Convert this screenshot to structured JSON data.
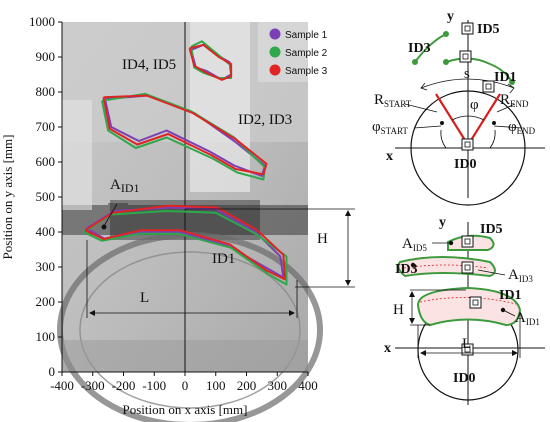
{
  "chart_data": [
    {
      "type": "line",
      "xlabel": "Position on x axis [mm]",
      "ylabel": "Position on y axis [mm]",
      "xlim": [
        -400,
        400
      ],
      "ylim": [
        0,
        1000
      ],
      "x_ticks": [
        "-400",
        "-300",
        "-200",
        "-100",
        "0",
        "100",
        "200",
        "300",
        "400"
      ],
      "y_ticks": [
        "0",
        "100",
        "200",
        "300",
        "400",
        "500",
        "600",
        "700",
        "800",
        "900",
        "1000"
      ],
      "legend": {
        "position": "top-right",
        "entries": [
          "Sample 1",
          "Sample 2",
          "Sample 3"
        ]
      },
      "colors": {
        "Sample 1": "#7b3fb5",
        "Sample 2": "#2ea84a",
        "Sample 3": "#e02424"
      },
      "series": [
        {
          "name": "Sample 1",
          "regions": [
            {
              "id": "ID4, ID5",
              "x": [
                20,
                60,
                105,
                145,
                150,
                120,
                70,
                35,
                20
              ],
              "y": [
                920,
                935,
                905,
                885,
                850,
                835,
                860,
                870,
                920
              ]
            },
            {
              "id": "ID2, ID3",
              "x": [
                -260,
                -120,
                30,
                160,
                260,
                250,
                160,
                80,
                -60,
                -150,
                -240,
                -260
              ],
              "y": [
                780,
                790,
                740,
                660,
                590,
                560,
                590,
                630,
                690,
                660,
                700,
                780
              ]
            },
            {
              "id": "ID1",
              "x": [
                -320,
                -230,
                -50,
                100,
                230,
                310,
                320,
                260,
                140,
                -20,
                -150,
                -260,
                -320
              ],
              "y": [
                410,
                460,
                470,
                465,
                400,
                330,
                270,
                300,
                360,
                400,
                400,
                380,
                410
              ]
            }
          ]
        },
        {
          "name": "Sample 2",
          "regions": [
            {
              "id": "ID4, ID5",
              "x": [
                20,
                55,
                110,
                150,
                150,
                110,
                60,
                30,
                20
              ],
              "y": [
                930,
                945,
                905,
                875,
                840,
                840,
                855,
                870,
                930
              ]
            },
            {
              "id": "ID2, ID3",
              "x": [
                -270,
                -130,
                20,
                160,
                260,
                255,
                170,
                90,
                -60,
                -160,
                -250,
                -270
              ],
              "y": [
                775,
                795,
                745,
                670,
                585,
                550,
                570,
                610,
                670,
                640,
                690,
                775
              ]
            },
            {
              "id": "ID1",
              "x": [
                -330,
                -240,
                -60,
                100,
                230,
                330,
                330,
                270,
                150,
                -20,
                -150,
                -270,
                -330
              ],
              "y": [
                400,
                450,
                460,
                455,
                395,
                330,
                250,
                280,
                355,
                395,
                395,
                375,
                400
              ]
            }
          ]
        },
        {
          "name": "Sample 3",
          "regions": [
            {
              "id": "ID4, ID5",
              "x": [
                15,
                60,
                110,
                150,
                150,
                120,
                70,
                30,
                15
              ],
              "y": [
                925,
                935,
                900,
                880,
                845,
                835,
                855,
                875,
                925
              ]
            },
            {
              "id": "ID2, ID3",
              "x": [
                -265,
                -125,
                25,
                165,
                265,
                255,
                165,
                85,
                -55,
                -155,
                -245,
                -265
              ],
              "y": [
                785,
                790,
                740,
                665,
                595,
                565,
                580,
                620,
                680,
                650,
                695,
                785
              ]
            },
            {
              "id": "ID1",
              "x": [
                -325,
                -235,
                -55,
                105,
                235,
                320,
                325,
                265,
                145,
                -15,
                -145,
                -265,
                -325
              ],
              "y": [
                405,
                455,
                475,
                470,
                405,
                335,
                265,
                290,
                365,
                405,
                405,
                380,
                405
              ]
            }
          ]
        }
      ],
      "annotations": [
        "ID4, ID5",
        "ID2, ID3",
        "ID1",
        "A",
        "ID1",
        "H",
        "L"
      ]
    },
    {
      "type": "diagram",
      "labels": {
        "y": "y",
        "x": "x",
        "id5": "ID5",
        "id3": "ID3",
        "id1": "ID1",
        "id0": "ID0",
        "s": "s",
        "phi": "φ",
        "r": "R",
        "start": "START",
        "end": "END",
        "phi_start": "φ",
        "phi_end": "φ"
      }
    },
    {
      "type": "diagram",
      "labels": {
        "y": "y",
        "x": "x",
        "id5": "ID5",
        "id3": "ID3",
        "id1": "ID1",
        "id0": "ID0",
        "a": "A",
        "a_id5": "ID5",
        "a_id3": "ID3",
        "a_id1": "ID1",
        "h": "H",
        "l": "L"
      }
    }
  ]
}
